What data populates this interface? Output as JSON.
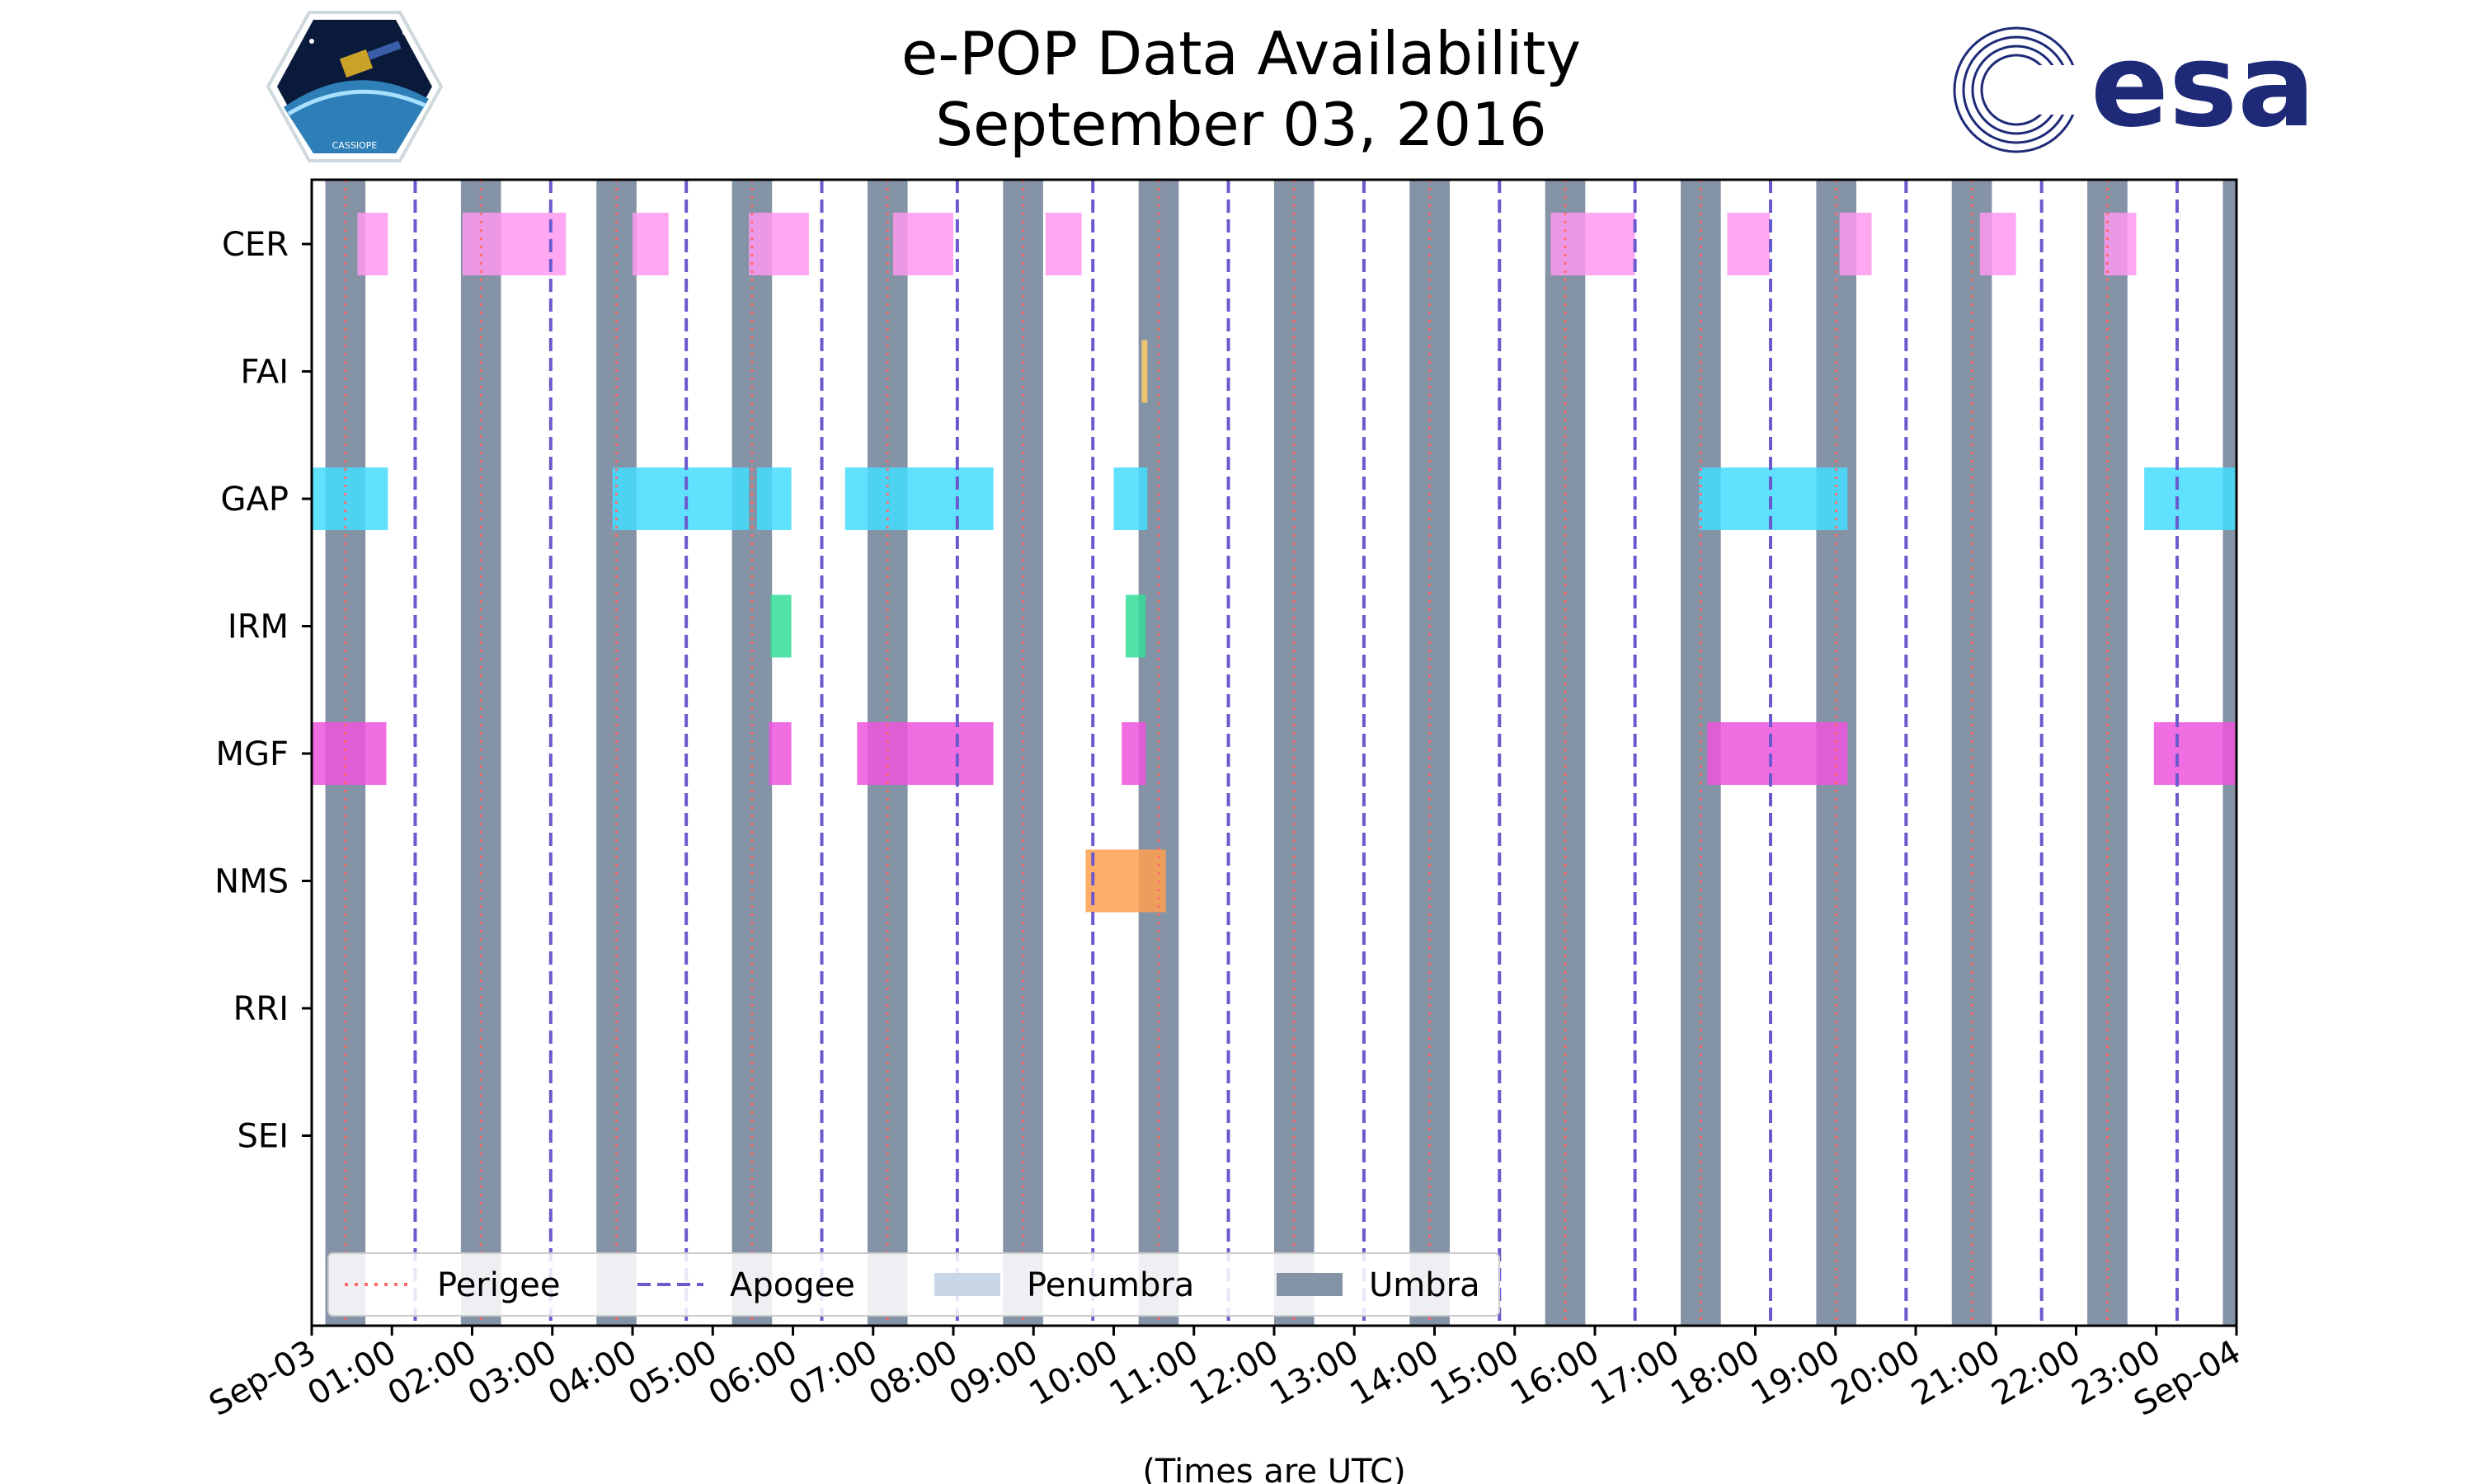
{
  "chart_data": {
    "type": "timeline",
    "title_line1": "e-POP Data Availability",
    "title_line2": "September 03, 2016",
    "xlabel": "(Times are UTC)",
    "x_unit": "hours UTC",
    "xlim": [
      0,
      24
    ],
    "x_ticks": [
      {
        "hour": 0,
        "label": "Sep-03"
      },
      {
        "hour": 1,
        "label": "01:00"
      },
      {
        "hour": 2,
        "label": "02:00"
      },
      {
        "hour": 3,
        "label": "03:00"
      },
      {
        "hour": 4,
        "label": "04:00"
      },
      {
        "hour": 5,
        "label": "05:00"
      },
      {
        "hour": 6,
        "label": "06:00"
      },
      {
        "hour": 7,
        "label": "07:00"
      },
      {
        "hour": 8,
        "label": "08:00"
      },
      {
        "hour": 9,
        "label": "09:00"
      },
      {
        "hour": 10,
        "label": "10:00"
      },
      {
        "hour": 11,
        "label": "11:00"
      },
      {
        "hour": 12,
        "label": "12:00"
      },
      {
        "hour": 13,
        "label": "13:00"
      },
      {
        "hour": 14,
        "label": "14:00"
      },
      {
        "hour": 15,
        "label": "15:00"
      },
      {
        "hour": 16,
        "label": "16:00"
      },
      {
        "hour": 17,
        "label": "17:00"
      },
      {
        "hour": 18,
        "label": "18:00"
      },
      {
        "hour": 19,
        "label": "19:00"
      },
      {
        "hour": 20,
        "label": "20:00"
      },
      {
        "hour": 21,
        "label": "21:00"
      },
      {
        "hour": 22,
        "label": "22:00"
      },
      {
        "hour": 23,
        "label": "23:00"
      },
      {
        "hour": 24,
        "label": "Sep-04"
      }
    ],
    "instruments": [
      "CER",
      "FAI",
      "GAP",
      "IRM",
      "MGF",
      "NMS",
      "RRI",
      "SEI"
    ],
    "umbra": [
      [
        0.17,
        0.67
      ],
      [
        1.86,
        2.36
      ],
      [
        3.55,
        4.05
      ],
      [
        5.24,
        5.74
      ],
      [
        6.93,
        7.43
      ],
      [
        8.62,
        9.12
      ],
      [
        10.31,
        10.81
      ],
      [
        12.0,
        12.5
      ],
      [
        13.69,
        14.19
      ],
      [
        15.38,
        15.88
      ],
      [
        17.07,
        17.57
      ],
      [
        18.76,
        19.26
      ],
      [
        20.45,
        20.95
      ],
      [
        22.14,
        22.64
      ],
      [
        23.83,
        24.0
      ]
    ],
    "perigee": [
      0.42,
      2.11,
      3.8,
      5.49,
      7.18,
      8.87,
      10.56,
      12.25,
      13.94,
      15.63,
      17.32,
      19.01,
      20.7,
      22.39
    ],
    "apogee": [
      1.29,
      2.98,
      4.67,
      6.36,
      8.05,
      9.74,
      11.43,
      13.12,
      14.81,
      16.5,
      18.19,
      19.88,
      21.57,
      23.26
    ],
    "series": [
      {
        "name": "CER",
        "color": "#ff99ee",
        "intervals": [
          [
            0.57,
            0.95
          ],
          [
            1.88,
            3.17
          ],
          [
            4.0,
            4.45
          ],
          [
            5.45,
            6.2
          ],
          [
            7.25,
            8.0
          ],
          [
            9.15,
            9.6
          ],
          [
            15.45,
            16.5
          ],
          [
            17.65,
            18.18
          ],
          [
            19.05,
            19.45
          ],
          [
            20.8,
            21.25
          ],
          [
            22.35,
            22.75
          ]
        ]
      },
      {
        "name": "FAI",
        "color": "#ffcc66",
        "intervals": [
          [
            10.35,
            10.42
          ]
        ]
      },
      {
        "name": "GAP",
        "color": "#44ddff",
        "intervals": [
          [
            0.0,
            0.95
          ],
          [
            3.75,
            5.45
          ],
          [
            5.55,
            5.98
          ],
          [
            6.65,
            8.5
          ],
          [
            10.0,
            10.42
          ],
          [
            17.3,
            19.15
          ],
          [
            22.85,
            24.0
          ]
        ]
      },
      {
        "name": "IRM",
        "color": "#33dd99",
        "intervals": [
          [
            5.72,
            5.98
          ],
          [
            10.15,
            10.4
          ]
        ]
      },
      {
        "name": "MGF",
        "color": "#ee55dd",
        "intervals": [
          [
            0.0,
            0.93
          ],
          [
            5.7,
            5.98
          ],
          [
            6.8,
            8.5
          ],
          [
            10.1,
            10.4
          ],
          [
            17.4,
            19.15
          ],
          [
            22.97,
            24.0
          ]
        ]
      },
      {
        "name": "NMS",
        "color": "#ffa050",
        "intervals": [
          [
            9.65,
            10.65
          ]
        ]
      },
      {
        "name": "RRI",
        "color": "#cccccc",
        "intervals": []
      },
      {
        "name": "SEI",
        "color": "#cccccc",
        "intervals": []
      }
    ],
    "legend": {
      "placement": "bottom-left",
      "entries": [
        {
          "label": "Perigee",
          "style": "dotted",
          "color": "#ff6b6b"
        },
        {
          "label": "Apogee",
          "style": "dashed",
          "color": "#6a5acd"
        },
        {
          "label": "Penumbra",
          "style": "patch",
          "color": "#c8d6e8"
        },
        {
          "label": "Umbra",
          "style": "patch",
          "color": "#8593a6"
        }
      ]
    },
    "colors": {
      "umbra": "#8593a6",
      "perigee": "#ff6b6b",
      "apogee": "#6a5acd",
      "penumbra": "#c8d6e8"
    }
  },
  "logos": {
    "left": {
      "text": "CASSIOPE"
    },
    "right": {
      "text": "esa",
      "color": "#1e2a78"
    }
  }
}
